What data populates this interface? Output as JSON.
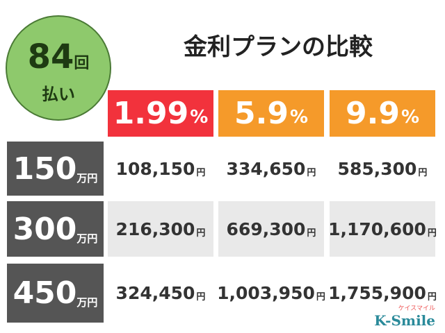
{
  "badge": {
    "number": "84",
    "unit": "回",
    "line2": "払い"
  },
  "title": "金利プランの比較",
  "columns": [
    {
      "rate": "1.99",
      "unit": "%",
      "color": "#f2323c"
    },
    {
      "rate": "5.9",
      "unit": "%",
      "color": "#f59a2a"
    },
    {
      "rate": "9.9",
      "unit": "%",
      "color": "#f59a2a"
    }
  ],
  "rows": [
    {
      "amount": "150",
      "unit": "万円",
      "background": "#ffffff",
      "cells": [
        {
          "value": "108,150",
          "unit": "円"
        },
        {
          "value": "334,650",
          "unit": "円"
        },
        {
          "value": "585,300",
          "unit": "円"
        }
      ]
    },
    {
      "amount": "300",
      "unit": "万円",
      "background": "#e9e9e9",
      "cells": [
        {
          "value": "216,300",
          "unit": "円"
        },
        {
          "value": "669,300",
          "unit": "円"
        },
        {
          "value": "1,170,600",
          "unit": "円"
        }
      ]
    },
    {
      "amount": "450",
      "unit": "万円",
      "background": "#ffffff",
      "cells": [
        {
          "value": "324,450",
          "unit": "円"
        },
        {
          "value": "1,003,950",
          "unit": "円"
        },
        {
          "value": "1,755,900",
          "unit": "円"
        }
      ]
    }
  ],
  "logo": {
    "brand": "K-Smile",
    "kana": "ケイスマイル"
  }
}
